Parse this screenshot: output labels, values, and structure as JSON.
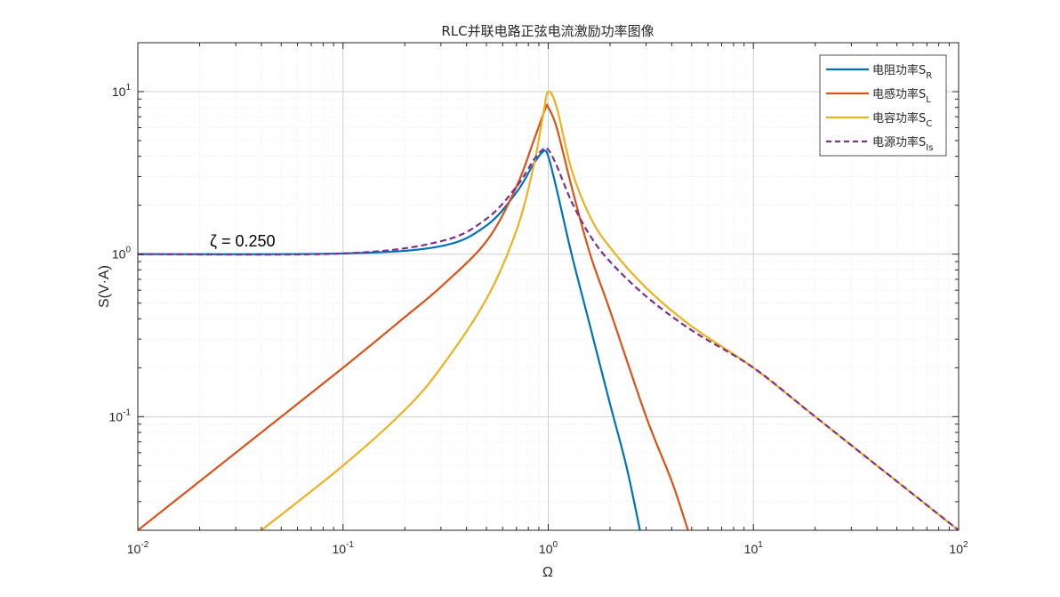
{
  "chart_data": {
    "type": "line",
    "title": "RLC并联电路正弦电流激励功率图像",
    "xlabel": "Ω",
    "ylabel": "S(V·A)",
    "xscale": "log",
    "yscale": "log",
    "xlim": [
      0.01,
      100
    ],
    "ylim": [
      0.02,
      20
    ],
    "grid": true,
    "legend_position": "top-right",
    "x_ticks": [
      {
        "base": "10",
        "exp": "-2"
      },
      {
        "base": "10",
        "exp": "-1"
      },
      {
        "base": "10",
        "exp": "0"
      },
      {
        "base": "10",
        "exp": "1"
      },
      {
        "base": "10",
        "exp": "2"
      }
    ],
    "y_ticks": [
      {
        "base": "10",
        "exp": "-1",
        "value": 0.1
      },
      {
        "base": "10",
        "exp": "0",
        "value": 1
      },
      {
        "base": "10",
        "exp": "1",
        "value": 10
      }
    ],
    "annotation": "ζ = 0.250",
    "zeta": 0.25,
    "series": [
      {
        "label": "电阻功率S",
        "sub": "R",
        "color": "#0072BD",
        "dash": false,
        "x": [
          0.01,
          0.1,
          0.3,
          0.5,
          0.7,
          0.85,
          0.95,
          1.0,
          1.1,
          1.3,
          1.6,
          2.0,
          2.4,
          2.8
        ],
        "y": [
          1.0,
          1.01,
          1.12,
          1.5,
          2.4,
          3.6,
          4.3,
          4.0,
          2.5,
          1.0,
          0.36,
          0.12,
          0.05,
          0.02
        ]
      },
      {
        "label": "电感功率S",
        "sub": "L",
        "color": "#D95319",
        "dash": false,
        "x": [
          0.01,
          0.03,
          0.1,
          0.2,
          0.3,
          0.5,
          0.7,
          0.85,
          0.97,
          1.0,
          1.1,
          1.3,
          1.6,
          2.0,
          3.0,
          4.0,
          4.8
        ],
        "y": [
          0.02,
          0.06,
          0.2,
          0.41,
          0.63,
          1.2,
          2.6,
          5.0,
          7.9,
          8.0,
          6.0,
          2.6,
          1.0,
          0.45,
          0.1,
          0.04,
          0.02
        ]
      },
      {
        "label": "电容功率S",
        "sub": "C",
        "color": "#EDB120",
        "dash": false,
        "x": [
          0.04,
          0.1,
          0.2,
          0.3,
          0.5,
          0.7,
          0.85,
          0.95,
          1.0,
          1.1,
          1.3,
          1.6,
          2.0,
          3.0,
          5.0,
          10,
          20,
          50,
          100
        ],
        "y": [
          0.02,
          0.05,
          0.11,
          0.2,
          0.53,
          1.4,
          3.5,
          7.5,
          10.0,
          8.0,
          3.3,
          1.7,
          1.1,
          0.62,
          0.36,
          0.2,
          0.1,
          0.04,
          0.02
        ]
      },
      {
        "label": "电源功率S",
        "sub": "Is",
        "color": "#7E2F8E",
        "dash": true,
        "x": [
          0.01,
          0.1,
          0.3,
          0.5,
          0.7,
          0.85,
          0.95,
          1.0,
          1.1,
          1.3,
          1.6,
          2.0,
          3.0,
          5.0,
          10,
          20,
          50,
          100
        ],
        "y": [
          1.0,
          1.01,
          1.2,
          1.65,
          2.6,
          3.8,
          4.45,
          4.4,
          3.5,
          2.1,
          1.3,
          0.9,
          0.55,
          0.34,
          0.2,
          0.1,
          0.04,
          0.02
        ]
      }
    ]
  }
}
